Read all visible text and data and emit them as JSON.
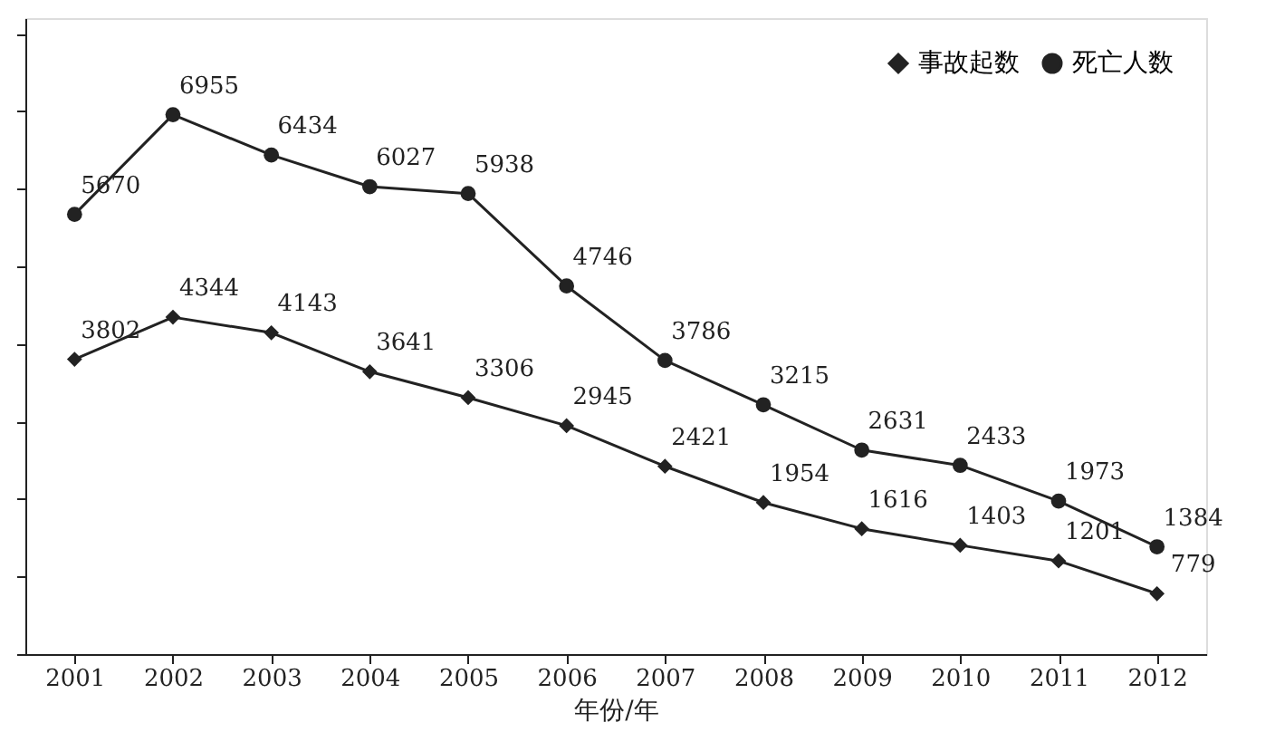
{
  "chart_data": {
    "type": "line",
    "categories": [
      "2001",
      "2002",
      "2003",
      "2004",
      "2005",
      "2006",
      "2007",
      "2008",
      "2009",
      "2010",
      "2011",
      "2012"
    ],
    "series": [
      {
        "name": "事故起数",
        "color": "#222222",
        "marker": "diamond",
        "values": [
          3802,
          4344,
          4143,
          3641,
          3306,
          2945,
          2421,
          1954,
          1616,
          1403,
          1201,
          779
        ]
      },
      {
        "name": "死亡人数",
        "color": "#222222",
        "marker": "circle",
        "values": [
          5670,
          6955,
          6434,
          6027,
          5938,
          4746,
          3786,
          3215,
          2631,
          2433,
          1973,
          1384
        ]
      }
    ],
    "xlabel": "年份/年",
    "ylim": [
      0,
      8200
    ],
    "tick_labels": "x",
    "data_labels": true,
    "legend": "top right",
    "grid": false,
    "line_style": "solid"
  }
}
